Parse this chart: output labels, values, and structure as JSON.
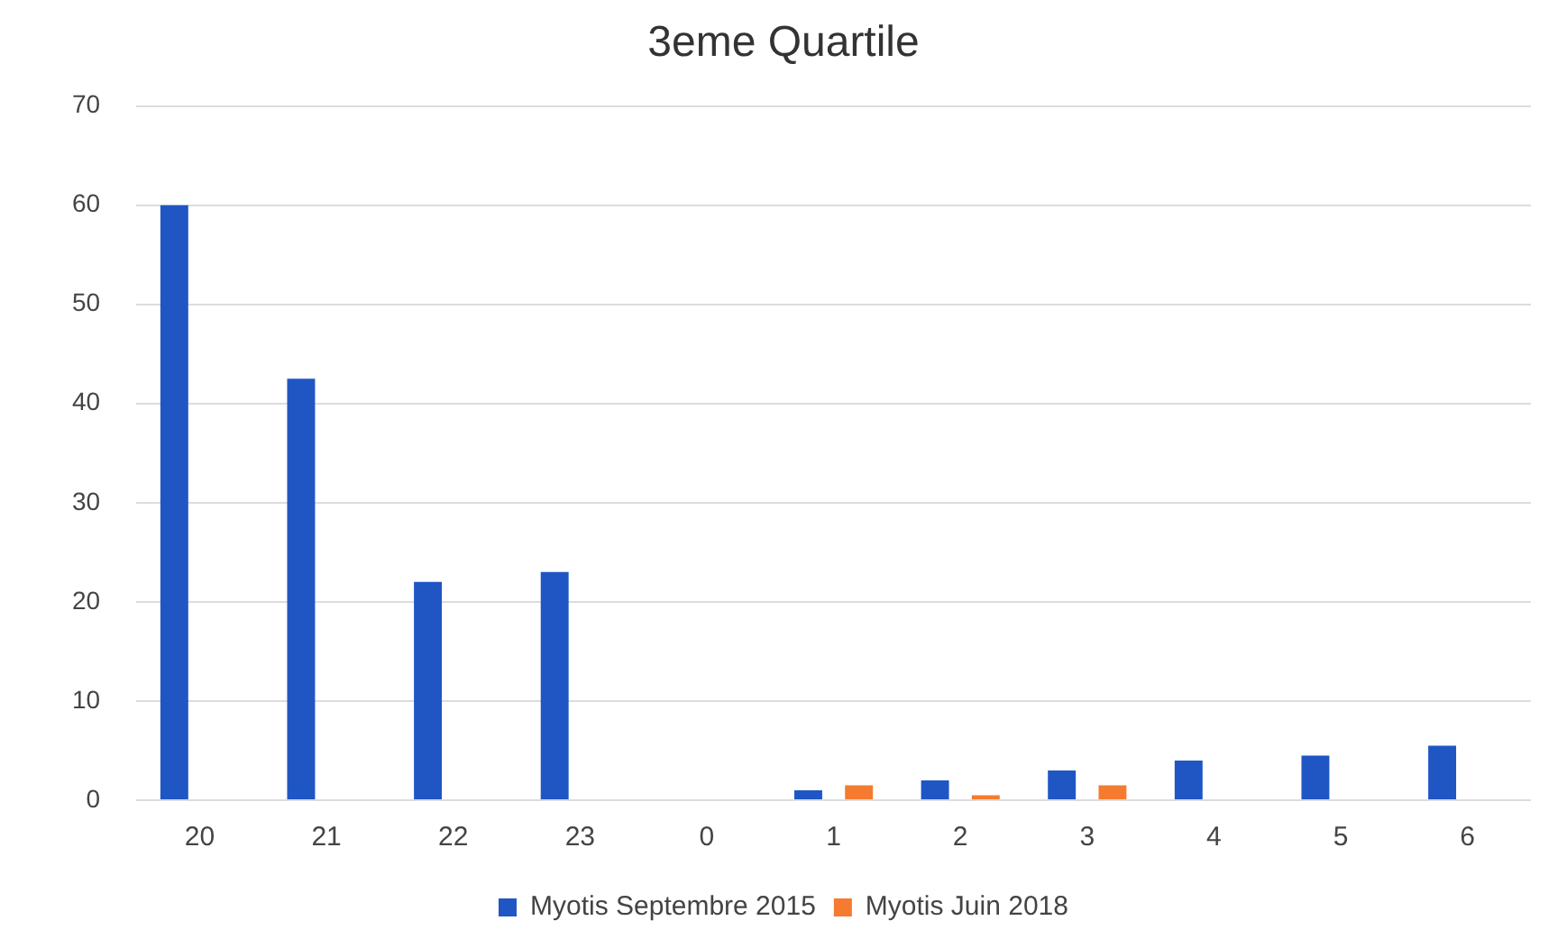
{
  "chart_data": {
    "type": "bar",
    "title": "3eme Quartile",
    "categories": [
      "20",
      "21",
      "22",
      "23",
      "0",
      "1",
      "2",
      "3",
      "4",
      "5",
      "6"
    ],
    "series": [
      {
        "name": "Myotis Septembre 2015",
        "color": "#1f56c4",
        "values": [
          60,
          42.5,
          22,
          23,
          0,
          1,
          2,
          3,
          4,
          4.5,
          5.5
        ]
      },
      {
        "name": "Myotis Juin 2018",
        "color": "#f47b30",
        "values": [
          0,
          0,
          0,
          0,
          0,
          1.5,
          0.5,
          1.5,
          0,
          0,
          0
        ]
      }
    ],
    "ylim": [
      0,
      70
    ],
    "yticks": [
      0,
      10,
      20,
      30,
      40,
      50,
      60,
      70
    ],
    "grid": "y",
    "legend": "bottom"
  }
}
